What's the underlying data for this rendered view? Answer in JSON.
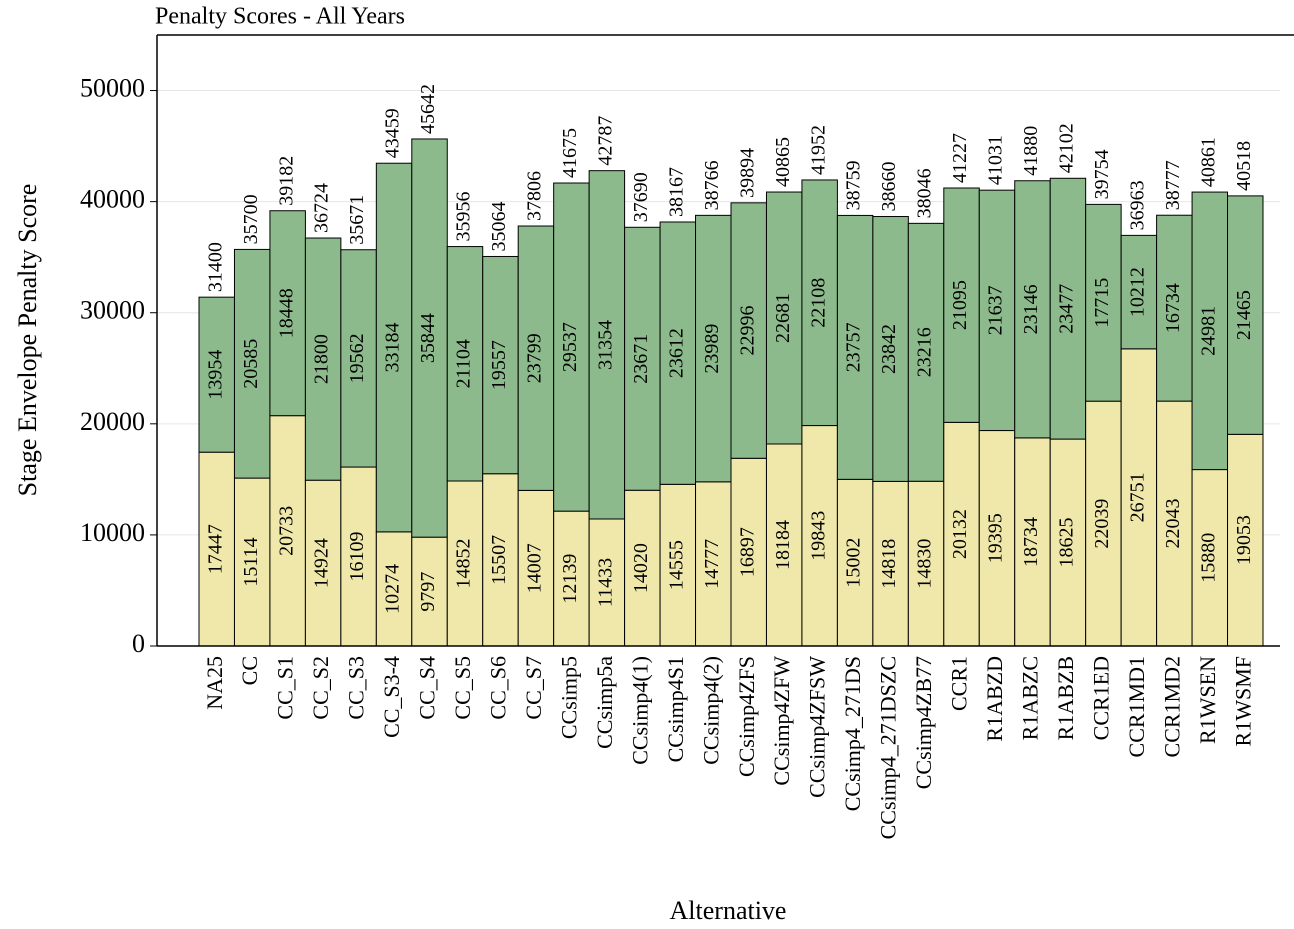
{
  "chart_data": {
    "type": "stacked_bar",
    "title": "Penalty Scores - All Years",
    "x_label": "Alternative",
    "y_label": "Stage Envelope Penalty Score",
    "categories": [
      "NA25",
      "CC",
      "CC_S1",
      "CC_S2",
      "CC_S3",
      "CC_S3-4",
      "CC_S4",
      "CC_S5",
      "CC_S6",
      "CC_S7",
      "CCsimp5",
      "CCsimp5a",
      "CCsimp4(1)",
      "CCsimp4S1",
      "CCsimp4(2)",
      "CCsimp4ZFS",
      "CCsimp4ZFW",
      "CCsimp4ZFSW",
      "CCsimp4_271DS",
      "CCsimp4_271DSZC",
      "CCsimp4ZB77",
      "CCR1",
      "R1ABZD",
      "R1ABZC",
      "R1ABZB",
      "CCR1ED",
      "CCR1MD1",
      "CCR1MD2",
      "R1WSEN",
      "R1WSMF"
    ],
    "series": [
      {
        "color": "#efe8aa",
        "values": [
          17447,
          15114,
          20733,
          14924,
          16109,
          10274,
          9797,
          14852,
          15507,
          14007,
          12139,
          11433,
          14020,
          14555,
          14777,
          16897,
          18184,
          19843,
          15002,
          14818,
          14830,
          20132,
          19395,
          18734,
          18625,
          22039,
          26751,
          22043,
          15880,
          19053
        ]
      },
      {
        "color": "#8cba8c",
        "values": [
          13954,
          20585,
          18448,
          21800,
          19562,
          33184,
          35844,
          21104,
          19557,
          23799,
          29537,
          31354,
          23671,
          23612,
          23989,
          22996,
          22681,
          22108,
          23757,
          23842,
          23216,
          21095,
          21637,
          23146,
          23477,
          17715,
          10212,
          16734,
          24981,
          21465
        ]
      }
    ],
    "totals": [
      31400,
      35700,
      39182,
      36724,
      35671,
      43459,
      45642,
      35956,
      35064,
      37806,
      41675,
      42787,
      37690,
      38167,
      38766,
      39894,
      40865,
      41952,
      38759,
      38660,
      38046,
      41227,
      41031,
      41880,
      42102,
      39754,
      36963,
      38777,
      40861,
      40518
    ],
    "ylim": [
      0,
      55000
    ],
    "yticks": [
      0,
      10000,
      20000,
      30000,
      40000,
      50000
    ],
    "grid": true
  }
}
